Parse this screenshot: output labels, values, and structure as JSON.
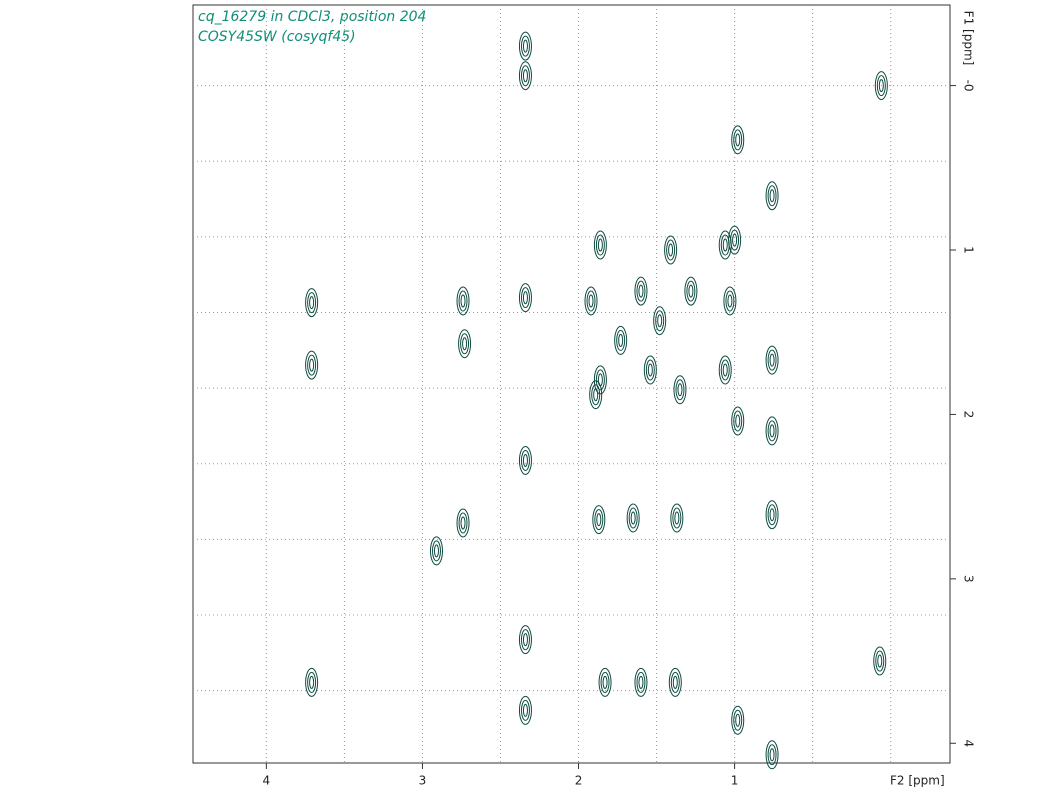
{
  "chart_data": {
    "type": "contour",
    "title": "cq_16279 in CDCl3, position 204",
    "subtitle": "COSY45SW (cosyqf45)",
    "x_label": "F2 [ppm]",
    "y_label": "F1 [ppm]",
    "color": "#0d4a40",
    "xlim": [
      4.47,
      -0.38
    ],
    "ylim": [
      -0.49,
      4.12
    ],
    "xticks": [
      4,
      3,
      2,
      1
    ],
    "yticks": [
      {
        "value": 0,
        "label": "-0"
      },
      1,
      2,
      3,
      4
    ],
    "xgrid": [
      4,
      3.5,
      3,
      2.5,
      2,
      1.5,
      1,
      0.5,
      0
    ],
    "ygrid": [
      0,
      0.46,
      0.92,
      1.38,
      1.84,
      2.3,
      2.76,
      3.22,
      3.68
    ],
    "x": [
      0.06,
      0.07,
      0.76,
      1.0,
      1.06,
      1.86,
      2.74,
      2.73,
      3.71,
      3.71,
      2.34,
      2.74,
      2.91,
      3.71,
      1.83,
      1.65,
      1.37,
      1.38,
      1.6,
      2.34,
      2.34,
      2.34,
      2.34,
      2.34,
      1.92,
      1.86,
      1.6,
      1.48,
      1.28,
      1.54,
      1.35,
      1.73,
      1.89,
      1.06,
      1.03,
      1.41,
      0.76,
      0.76,
      0.76,
      0.98,
      0.98,
      0.98,
      0.76,
      1.87
    ],
    "values": [
      0.0,
      3.5,
      0.67,
      0.94,
      0.97,
      0.97,
      1.31,
      1.57,
      1.32,
      1.7,
      2.28,
      2.66,
      2.83,
      3.63,
      3.63,
      2.63,
      2.63,
      3.63,
      3.63,
      -0.24,
      -0.06,
      1.29,
      3.37,
      3.8,
      1.31,
      1.79,
      1.25,
      1.43,
      1.25,
      1.73,
      1.85,
      1.55,
      1.88,
      1.73,
      1.31,
      1.0,
      1.67,
      2.1,
      2.61,
      3.86,
      2.04,
      0.33,
      4.07,
      2.64
    ]
  }
}
